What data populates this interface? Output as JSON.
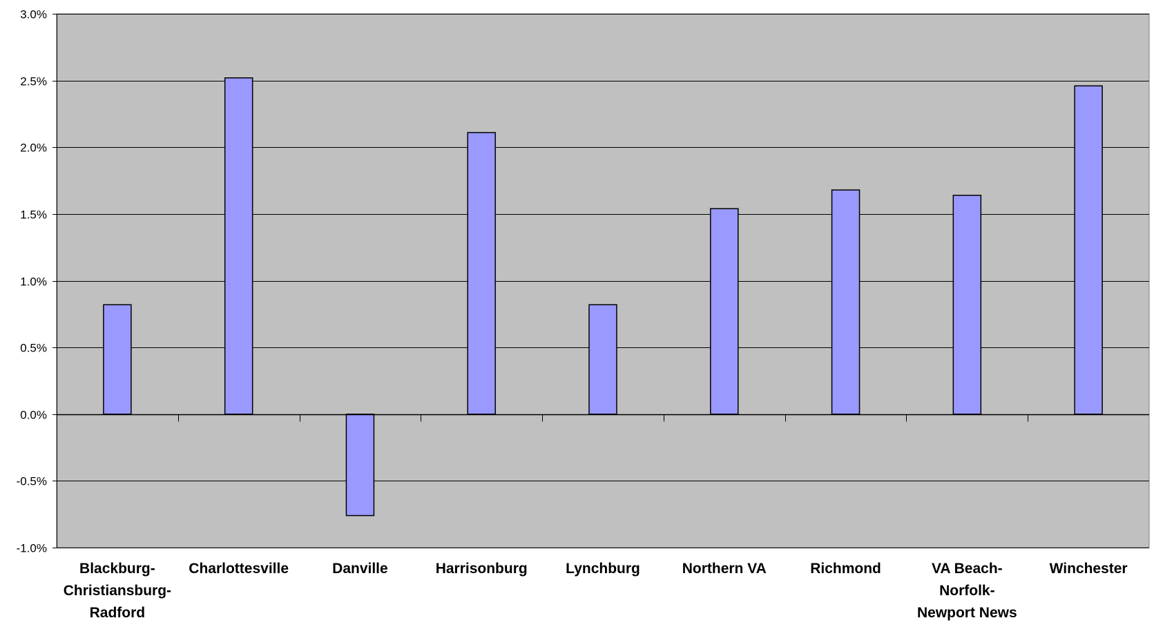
{
  "chart_data": {
    "type": "bar",
    "title": "",
    "xlabel": "",
    "ylabel": "",
    "categories": [
      [
        "Blackburg-",
        "Christiansburg-",
        "Radford"
      ],
      [
        "Charlottesville"
      ],
      [
        "Danville"
      ],
      [
        "Harrisonburg"
      ],
      [
        "Lynchburg"
      ],
      [
        "Northern VA"
      ],
      [
        "Richmond"
      ],
      [
        "VA Beach-",
        "Norfolk-",
        "Newport News"
      ],
      [
        "Winchester"
      ]
    ],
    "values": [
      0.82,
      2.52,
      -0.76,
      2.11,
      0.82,
      1.54,
      1.68,
      1.64,
      2.46
    ],
    "ylim": [
      -1.0,
      3.0
    ],
    "yticks": [
      3.0,
      2.5,
      2.0,
      1.5,
      1.0,
      0.5,
      0.0,
      -0.5,
      -1.0
    ],
    "ytick_labels": [
      "3.0%",
      "2.5%",
      "2.0%",
      "1.5%",
      "1.0%",
      "0.5%",
      "0.0%",
      "-0.5%",
      "-1.0%"
    ],
    "grid": true,
    "legend": "none",
    "colors": {
      "plot_background": "#c0c0c0",
      "bar_fill": "#9999ff",
      "bar_stroke": "#000000",
      "gridline": "#000000"
    }
  }
}
